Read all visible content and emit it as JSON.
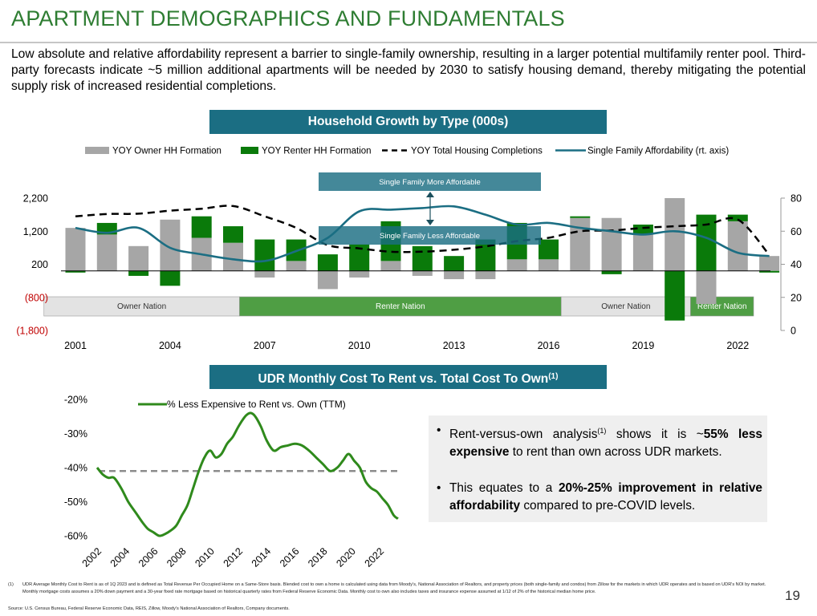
{
  "page": {
    "title": "APARTMENT DEMOGRAPHICS AND FUNDAMENTALS",
    "intro": "Low absolute and relative affordability represent a barrier to single-family ownership, resulting in a larger potential multifamily renter pool. Third-party forecasts indicate ~5 million additional apartments will be needed by 2030 to satisfy housing demand, thereby mitigating the potential supply risk of increased residential completions.",
    "page_number": "19"
  },
  "colors": {
    "title": "#2e7d32",
    "banner": "#1b6e83",
    "owner_bar": "#a6a6a6",
    "renter_bar": "#0a7a0a",
    "affordability_line": "#1b6e83",
    "rent_vs_own_line": "#2f8a1c",
    "negative_tick": "#c00000"
  },
  "chart_data": [
    {
      "type": "bar",
      "title": "Household Growth by Type (000s)",
      "x": [
        2001,
        2002,
        2003,
        2004,
        2005,
        2006,
        2007,
        2008,
        2009,
        2010,
        2011,
        2012,
        2013,
        2014,
        2015,
        2016,
        2017,
        2018,
        2019,
        2020,
        2021,
        2022,
        2023
      ],
      "x_ticks": [
        "2001",
        "2004",
        "2007",
        "2010",
        "2013",
        "2016",
        "2019",
        "2022"
      ],
      "y_ticks_left": [
        "2,200",
        "1,200",
        "200",
        "(800)",
        "(1,800)"
      ],
      "y_ticks_right": [
        "80",
        "60",
        "40",
        "20",
        "0"
      ],
      "ylim_left": [
        -1800,
        2200
      ],
      "ylim_right": [
        0,
        80
      ],
      "legend_position": "top",
      "series": [
        {
          "name": "YOY Owner HH Formation",
          "kind": "bar",
          "axis": "left",
          "values": [
            1300,
            1100,
            750,
            1550,
            1000,
            850,
            -200,
            300,
            -550,
            -200,
            300,
            -150,
            -250,
            -250,
            350,
            350,
            1600,
            1600,
            1100,
            2200,
            -1000,
            1500,
            450
          ]
        },
        {
          "name": "YOY Renter HH Formation",
          "kind": "bar",
          "axis": "left",
          "values": [
            -50,
            350,
            -150,
            -450,
            650,
            500,
            950,
            650,
            500,
            800,
            1200,
            750,
            450,
            950,
            1100,
            600,
            50,
            -100,
            300,
            -1500,
            1700,
            200,
            -50
          ]
        },
        {
          "name": "YOY Total Housing Completions",
          "kind": "dashed-line",
          "axis": "left",
          "values": [
            1650,
            1720,
            1730,
            1820,
            1880,
            1960,
            1650,
            1300,
            780,
            680,
            580,
            580,
            640,
            740,
            900,
            1000,
            1200,
            1220,
            1300,
            1350,
            1400,
            1550,
            480
          ]
        },
        {
          "name": "Single Family Affordability (rt. axis)",
          "kind": "line",
          "axis": "right",
          "values": [
            62,
            59,
            62,
            50,
            46,
            43,
            42,
            48,
            56,
            72,
            73,
            74,
            75,
            70,
            64,
            65,
            62,
            60,
            58,
            60,
            56,
            47,
            45
          ]
        }
      ],
      "annotations": {
        "more_affordable": "Single Family More Affordable",
        "less_affordable": "Single Family Less Affordable"
      },
      "nation_bands": [
        {
          "label": "Owner Nation",
          "from": 2000.5,
          "to": 2006.7,
          "fill": "#e3e3e3",
          "text": "#333333"
        },
        {
          "label": "Renter Nation",
          "from": 2006.7,
          "to": 2016.9,
          "fill": "#4f9e44",
          "text": "#ffffff"
        },
        {
          "label": "Owner Nation",
          "from": 2016.9,
          "to": 2021.0,
          "fill": "#e3e3e3",
          "text": "#333333"
        },
        {
          "label": "Renter Nation",
          "from": 2021.0,
          "to": 2023.0,
          "fill": "#4f9e44",
          "text": "#ffffff"
        }
      ]
    },
    {
      "type": "line",
      "title": "UDR Monthly Cost To Rent vs. Total Cost To Own",
      "title_sup": "(1)",
      "x_ticks": [
        "2002",
        "2004",
        "2006",
        "2008",
        "2010",
        "2012",
        "2014",
        "2016",
        "2018",
        "2020",
        "2022"
      ],
      "y_ticks": [
        "-20%",
        "-30%",
        "-40%",
        "-50%",
        "-60%"
      ],
      "ylim": [
        -60,
        -20
      ],
      "xlim": [
        2002,
        2023.3
      ],
      "average_line": -41,
      "series": [
        {
          "name": "% Less Expensive to Rent vs. Own (TTM)",
          "x": [
            2002,
            2002.4,
            2002.8,
            2003.2,
            2003.7,
            2004.2,
            2004.7,
            2005.2,
            2005.6,
            2006,
            2006.4,
            2006.8,
            2007.2,
            2007.6,
            2008,
            2008.4,
            2008.8,
            2009.2,
            2009.6,
            2010,
            2010.4,
            2010.8,
            2011.2,
            2011.6,
            2012,
            2012.3,
            2012.6,
            2012.9,
            2013.2,
            2013.6,
            2014,
            2014.5,
            2015,
            2015.5,
            2016,
            2016.5,
            2017,
            2017.5,
            2018,
            2018.5,
            2019,
            2019.4,
            2019.8,
            2020.2,
            2020.6,
            2021,
            2021.4,
            2021.8,
            2022.2,
            2022.6,
            2023,
            2023.3
          ],
          "values": [
            -40,
            -42,
            -43,
            -43,
            -46,
            -50,
            -53,
            -56,
            -58,
            -59,
            -60,
            -59.5,
            -58.5,
            -57,
            -54,
            -51,
            -46,
            -41,
            -37,
            -35,
            -37,
            -36,
            -33,
            -31,
            -28,
            -26,
            -24.5,
            -24,
            -25,
            -28,
            -32,
            -35,
            -34,
            -33.5,
            -33,
            -33.5,
            -35,
            -37,
            -39,
            -41,
            -40,
            -38,
            -36,
            -38,
            -40,
            -44,
            -46,
            -47,
            -49,
            -51,
            -54,
            -55
          ]
        }
      ]
    }
  ],
  "bullets": [
    {
      "pre": "Rent-versus-own analysis",
      "sup": "(1)",
      "mid": " shows it is ~",
      "bold": "55% less expensive",
      "post": " to rent than own across UDR markets."
    },
    {
      "pre": "This equates to a ",
      "bold": "20%-25% improvement in relative affordability",
      "post": " compared to pre-COVID levels."
    }
  ],
  "footnote": {
    "number": "(1)",
    "text": "UDR Average Monthly Cost to Rent is as of 1Q 2023 and is defined as Total Revenue Per Occupied Home on a Same-Store basis. Blended cost to own a home is calculated using data from Moody's, National Association of Realtors, and property prices (both single-family and condos) from Zillow for the markets in which UDR operates and is based on UDR's NOI by market. Monthly mortgage costs assumes a 20% down payment and a 30-year fixed rate mortgage based on historical quarterly rates from Federal Reserve Economic Data. Monthly cost to own also includes taxes and insurance expense assumed at 1/12 of 2% of the historical median home price.",
    "source": "Source: U.S. Census Bureau, Federal Reserve Economic Data, REIS, Zillow, Moody's National Association of Realtors, Company documents."
  }
}
